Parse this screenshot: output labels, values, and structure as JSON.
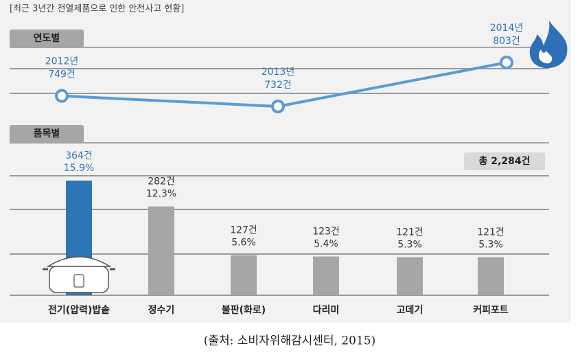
{
  "title": "[최근 3년간 전열제품으로 인한 안전사고 현황]",
  "source": "(출처: 소비자위해감시센터, 2015)",
  "chart_data": [
    {
      "type": "line",
      "section": "연도별",
      "color": "#5b9bd5",
      "categories": [
        "2012년",
        "2013년",
        "2014년"
      ],
      "values": [
        749,
        732,
        803
      ],
      "value_labels": [
        "749건",
        "732건",
        "803건"
      ]
    },
    {
      "type": "bar",
      "section": "품목별",
      "color": "#a6a6a6",
      "highlight_color": "#2e75b6",
      "categories": [
        "전기(압력)밥솥",
        "정수기",
        "불판(화로)",
        "다리미",
        "고데기",
        "커피포트"
      ],
      "values": [
        364,
        282,
        127,
        123,
        121,
        121
      ],
      "value_labels": [
        "364건",
        "282건",
        "127건",
        "123건",
        "121건",
        "121건"
      ],
      "percent": {
        "values": [
          15.9,
          12.3,
          5.6,
          5.4,
          5.3,
          5.3
        ],
        "value_labels": [
          "15.9%",
          "12.3%",
          "5.6%",
          "5.4%",
          "5.3%",
          "5.3%"
        ]
      },
      "total": {
        "value": 2284,
        "label": "총 2,284건"
      }
    }
  ]
}
